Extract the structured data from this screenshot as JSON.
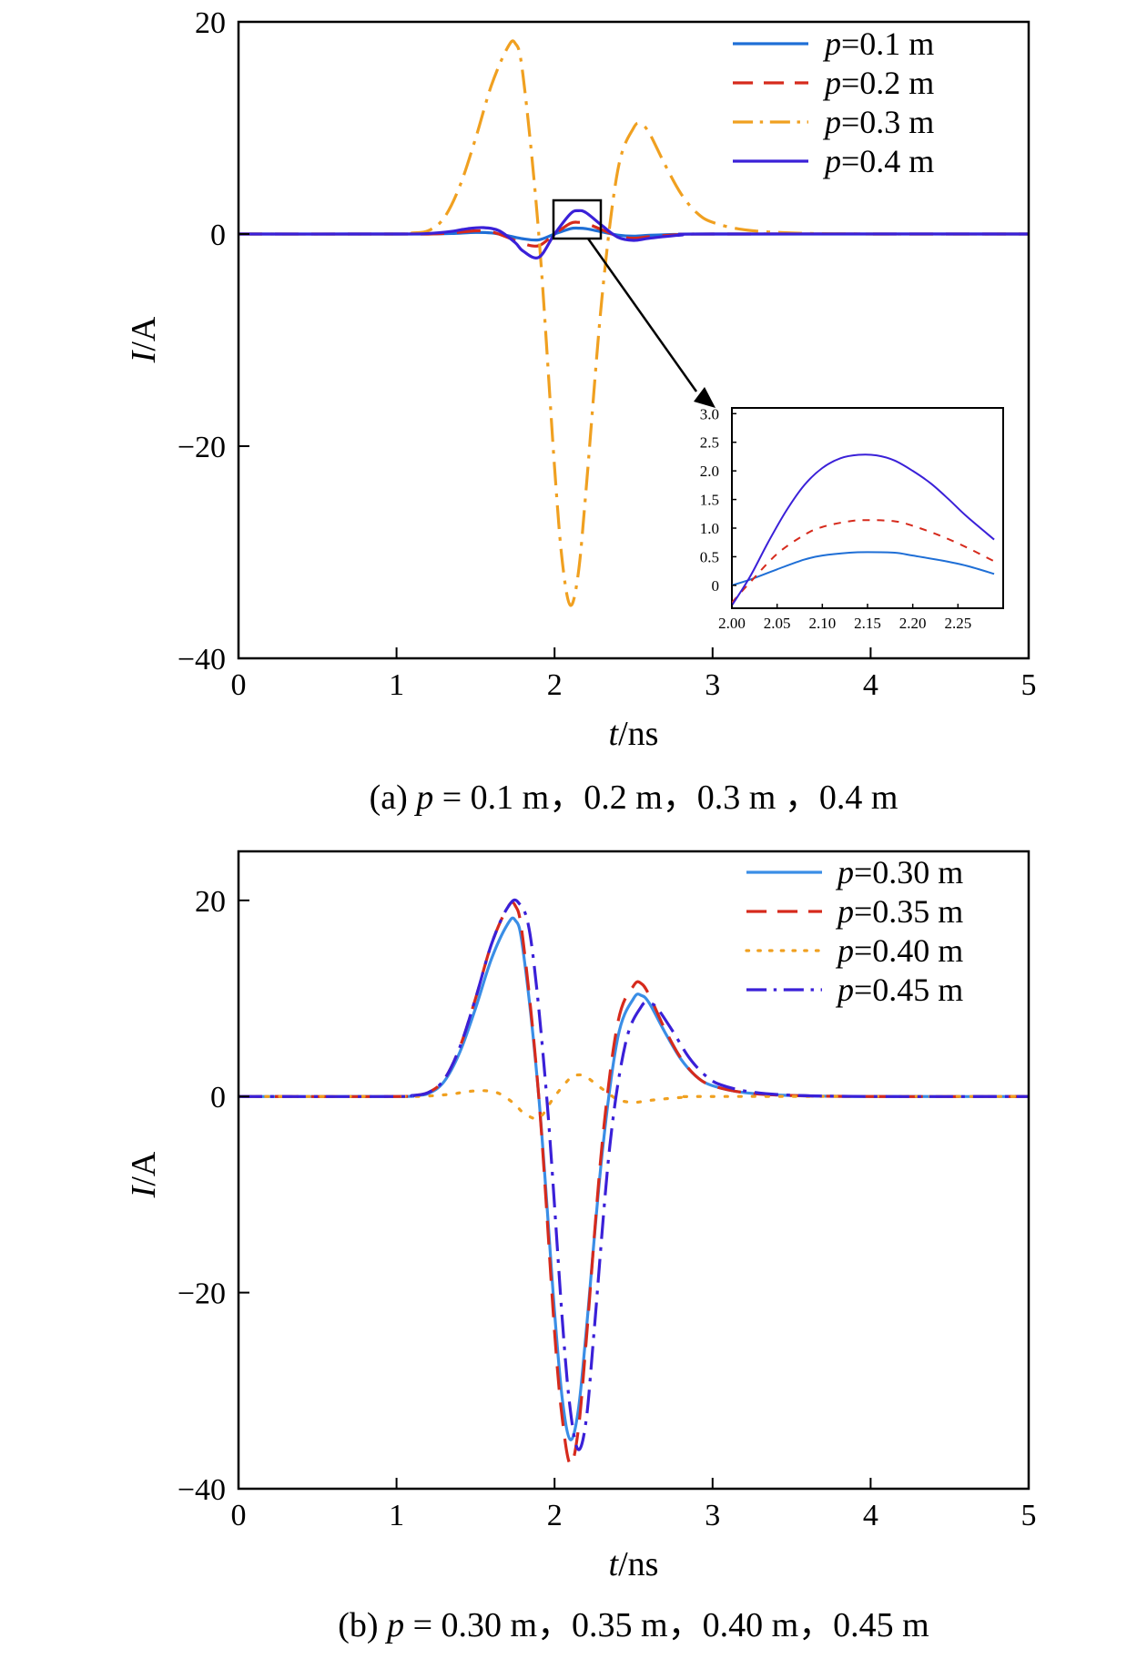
{
  "chart_data": [
    {
      "type": "line",
      "caption": {
        "label": "(a) ",
        "var": "p",
        "rest": " = 0.1 m，0.2 m，0.3 m ，0.4 m"
      },
      "xlabel": {
        "var": "t",
        "unit": "/ns"
      },
      "ylabel": {
        "var": "I",
        "unit": "/A"
      },
      "xlim": [
        0,
        5
      ],
      "ylim": [
        -40,
        20
      ],
      "xticks": [
        0,
        1,
        2,
        3,
        4,
        5
      ],
      "yticks": [
        -40,
        -20,
        0,
        20
      ],
      "ytick_labels": [
        "−40",
        "−20",
        "0",
        "20"
      ],
      "legend_position": "top-right",
      "series": [
        {
          "name": "p=0.1 m",
          "var": "p",
          "rest": "=0.1 m",
          "style": "solid",
          "color": "#1f6fd6",
          "x": [
            0,
            1.0,
            1.2,
            1.35,
            1.5,
            1.6,
            1.7,
            1.8,
            1.9,
            2.0,
            2.1,
            2.15,
            2.2,
            2.3,
            2.4,
            2.5,
            2.6,
            2.8,
            3.0,
            5
          ],
          "y": [
            0,
            0,
            0,
            0.05,
            0.15,
            0.1,
            -0.15,
            -0.45,
            -0.55,
            0.0,
            0.5,
            0.55,
            0.5,
            0.2,
            -0.1,
            -0.2,
            -0.12,
            -0.03,
            0,
            0
          ]
        },
        {
          "name": "p=0.2 m",
          "var": "p",
          "rest": "=0.2 m",
          "style": "dashed",
          "color": "#d62a1c",
          "x": [
            0,
            1.0,
            1.2,
            1.35,
            1.5,
            1.6,
            1.7,
            1.8,
            1.9,
            2.0,
            2.1,
            2.15,
            2.2,
            2.3,
            2.4,
            2.5,
            2.6,
            2.8,
            3.0,
            5
          ],
          "y": [
            0,
            0,
            0,
            0.1,
            0.3,
            0.2,
            -0.3,
            -0.9,
            -1.1,
            0.0,
            1.0,
            1.1,
            1.0,
            0.4,
            -0.2,
            -0.4,
            -0.25,
            -0.05,
            0,
            0
          ]
        },
        {
          "name": "p=0.3 m",
          "var": "p",
          "rest": "=0.3 m",
          "style": "dashdot",
          "color": "#f0a020",
          "x": [
            0,
            1.0,
            1.1,
            1.2,
            1.3,
            1.4,
            1.5,
            1.6,
            1.7,
            1.75,
            1.8,
            1.9,
            2.0,
            2.05,
            2.1,
            2.15,
            2.2,
            2.3,
            2.4,
            2.5,
            2.55,
            2.6,
            2.7,
            2.8,
            2.9,
            3.0,
            3.2,
            3.5,
            4.0,
            5
          ],
          "y": [
            0,
            0,
            0.1,
            0.3,
            1.5,
            4.5,
            9,
            14,
            17.5,
            18,
            15,
            0,
            -22,
            -31,
            -35,
            -32,
            -24,
            -6,
            6,
            10,
            10.3,
            9.5,
            6.5,
            3.8,
            2,
            1.1,
            0.4,
            0.1,
            0,
            0
          ]
        },
        {
          "name": "p=0.4 m",
          "var": "p",
          "rest": "=0.4 m",
          "style": "solid",
          "color": "#3a20d8",
          "x": [
            0,
            1.0,
            1.2,
            1.35,
            1.45,
            1.55,
            1.65,
            1.75,
            1.8,
            1.9,
            2.0,
            2.1,
            2.15,
            2.2,
            2.3,
            2.4,
            2.5,
            2.6,
            2.8,
            3.0,
            5
          ],
          "y": [
            0,
            0,
            0.05,
            0.25,
            0.5,
            0.6,
            0.3,
            -0.8,
            -1.6,
            -2.2,
            0,
            1.9,
            2.2,
            2.0,
            0.8,
            -0.3,
            -0.6,
            -0.4,
            -0.1,
            0,
            0
          ]
        }
      ],
      "zoom_box": {
        "x": [
          2.0,
          2.3
        ],
        "y": [
          -0.5,
          3.0
        ]
      },
      "inset": {
        "xlim": [
          2.0,
          2.3
        ],
        "ylim": [
          -0.4,
          3.1
        ],
        "xticks": [
          2.0,
          2.05,
          2.1,
          2.15,
          2.2,
          2.25
        ],
        "xtick_labels": [
          "2.00",
          "2.05",
          "2.10",
          "2.15",
          "2.20",
          "2.25"
        ],
        "yticks": [
          0,
          0.5,
          1.0,
          1.5,
          2.0,
          2.5,
          3.0
        ],
        "ytick_labels": [
          "0",
          "0.5",
          "1.0",
          "1.5",
          "2.0",
          "2.5",
          "3.0"
        ],
        "series": [
          {
            "color": "#1f6fd6",
            "style": "solid",
            "x": [
              2.0,
              2.02,
              2.05,
              2.08,
              2.1,
              2.13,
              2.15,
              2.18,
              2.2,
              2.23,
              2.26,
              2.29
            ],
            "y": [
              0.0,
              0.1,
              0.28,
              0.45,
              0.52,
              0.57,
              0.58,
              0.57,
              0.52,
              0.44,
              0.34,
              0.2
            ]
          },
          {
            "color": "#d62a1c",
            "style": "dashed",
            "x": [
              2.0,
              2.02,
              2.05,
              2.08,
              2.1,
              2.13,
              2.15,
              2.18,
              2.2,
              2.23,
              2.26,
              2.29
            ],
            "y": [
              -0.3,
              0.05,
              0.55,
              0.88,
              1.02,
              1.12,
              1.14,
              1.12,
              1.04,
              0.87,
              0.66,
              0.42
            ]
          },
          {
            "color": "#3a20d8",
            "style": "solid",
            "x": [
              2.0,
              2.02,
              2.04,
              2.06,
              2.08,
              2.1,
              2.12,
              2.14,
              2.16,
              2.18,
              2.2,
              2.22,
              2.24,
              2.26,
              2.29
            ],
            "y": [
              -0.35,
              0.15,
              0.75,
              1.3,
              1.75,
              2.05,
              2.22,
              2.28,
              2.27,
              2.18,
              2.0,
              1.78,
              1.5,
              1.2,
              0.8
            ]
          }
        ]
      }
    },
    {
      "type": "line",
      "caption": {
        "label": "(b) ",
        "var": "p",
        "rest": " = 0.30 m，0.35 m，0.40 m，0.45 m"
      },
      "xlabel": {
        "var": "t",
        "unit": "/ns"
      },
      "ylabel": {
        "var": "I",
        "unit": "/A"
      },
      "xlim": [
        0,
        5
      ],
      "ylim": [
        -40,
        25
      ],
      "xticks": [
        0,
        1,
        2,
        3,
        4,
        5
      ],
      "yticks": [
        -40,
        -20,
        0,
        20
      ],
      "ytick_labels": [
        "−40",
        "−20",
        "0",
        "20"
      ],
      "legend_position": "top-right",
      "series": [
        {
          "name": "p=0.30 m",
          "var": "p",
          "rest": "=0.30 m",
          "style": "solid",
          "color": "#3a8ee6",
          "x": [
            0,
            1.0,
            1.1,
            1.2,
            1.3,
            1.4,
            1.5,
            1.6,
            1.7,
            1.75,
            1.8,
            1.9,
            2.0,
            2.05,
            2.1,
            2.15,
            2.2,
            2.3,
            2.4,
            2.5,
            2.55,
            2.6,
            2.7,
            2.8,
            2.9,
            3.0,
            3.2,
            3.5,
            4.0,
            5
          ],
          "y": [
            0,
            0,
            0.1,
            0.3,
            1.5,
            4.5,
            9,
            14,
            17.5,
            18,
            15,
            0,
            -22,
            -31,
            -35,
            -32,
            -24,
            -6,
            6,
            10,
            10.3,
            9.5,
            6.5,
            3.8,
            2,
            1.1,
            0.4,
            0.1,
            0,
            0
          ]
        },
        {
          "name": "p=0.35 m",
          "var": "p",
          "rest": "=0.35 m",
          "style": "dashed",
          "color": "#d62a1c",
          "x": [
            0,
            1.0,
            1.1,
            1.2,
            1.3,
            1.4,
            1.5,
            1.6,
            1.7,
            1.75,
            1.8,
            1.9,
            2.0,
            2.05,
            2.1,
            2.15,
            2.2,
            2.3,
            2.4,
            2.5,
            2.55,
            2.6,
            2.7,
            2.8,
            2.9,
            3.0,
            3.2,
            3.5,
            4.0,
            5
          ],
          "y": [
            0,
            0,
            0.1,
            0.4,
            1.7,
            5,
            10,
            15.5,
            19.2,
            19.5,
            16,
            0,
            -24,
            -33,
            -37.5,
            -34,
            -25,
            -5,
            7.5,
            11.3,
            11.5,
            10.3,
            6.8,
            3.9,
            2,
            1.1,
            0.4,
            0.1,
            0,
            0
          ]
        },
        {
          "name": "p=0.40 m",
          "var": "p",
          "rest": "=0.40 m",
          "style": "dotted",
          "color": "#f0a020",
          "x": [
            0,
            1.0,
            1.2,
            1.35,
            1.45,
            1.55,
            1.65,
            1.75,
            1.8,
            1.9,
            2.0,
            2.1,
            2.15,
            2.2,
            2.3,
            2.4,
            2.5,
            2.6,
            2.8,
            3.0,
            5
          ],
          "y": [
            0,
            0,
            0.05,
            0.25,
            0.5,
            0.6,
            0.3,
            -0.8,
            -1.6,
            -2.2,
            0,
            1.9,
            2.2,
            2.0,
            0.8,
            -0.3,
            -0.6,
            -0.4,
            -0.1,
            0,
            0
          ]
        },
        {
          "name": "p=0.45 m",
          "var": "p",
          "rest": "=0.45 m",
          "style": "dashdot",
          "color": "#3a20d8",
          "x": [
            0,
            1.0,
            1.1,
            1.2,
            1.3,
            1.4,
            1.5,
            1.6,
            1.7,
            1.77,
            1.85,
            1.95,
            2.05,
            2.1,
            2.15,
            2.2,
            2.25,
            2.35,
            2.45,
            2.55,
            2.6,
            2.65,
            2.75,
            2.85,
            2.95,
            3.05,
            3.25,
            3.55,
            4.05,
            5
          ],
          "y": [
            0,
            0,
            0.1,
            0.4,
            1.7,
            5,
            10,
            15.5,
            19.2,
            19.8,
            16,
            0,
            -23,
            -32,
            -36,
            -33,
            -24,
            -5,
            5.5,
            9.2,
            9.5,
            9.0,
            6.6,
            4.0,
            2.2,
            1.2,
            0.45,
            0.1,
            0,
            0
          ]
        }
      ]
    }
  ]
}
